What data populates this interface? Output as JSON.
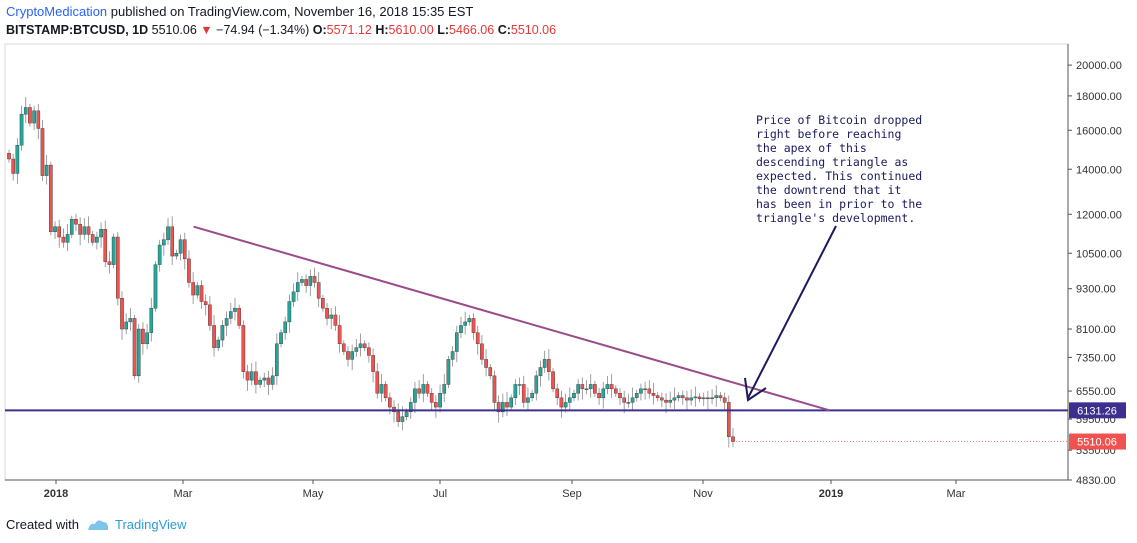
{
  "header": {
    "author": "CryptoMedication",
    "published_text": " published on TradingView.com, November 16, 2018 15:35 EST"
  },
  "ohlc": {
    "symbol": "BITSTAMP:BTCUSD, 1D",
    "last": "5510.06",
    "change": "−74.94 (−1.34%)",
    "o_label": "O:",
    "o_value": "5571.12",
    "h_label": "H:",
    "h_value": "5610.00",
    "l_label": "L:",
    "l_value": "5466.06",
    "c_label": "C:",
    "c_value": "5510.06"
  },
  "annotation": {
    "text": "Price of Bitcoin dropped\nright before reaching\nthe apex of this\ndescending triangle as\nexpected. This continued\nthe downtrend that it\nhas been in prior to the\ntriangle's development."
  },
  "footer": {
    "created_with": "Created with",
    "brand": "TradingView"
  },
  "colors": {
    "up": "#26a69a",
    "down": "#ef5350",
    "wick": "#888888",
    "trend": "#9c4a8a",
    "support": "#3d2f8f",
    "arrow": "#1a1a5e"
  },
  "chart_data": {
    "type": "candlestick",
    "symbol": "BITSTAMP:BTCUSD",
    "timeframe": "1D",
    "x_ticks": [
      "2018",
      "Mar",
      "May",
      "Jul",
      "Sep",
      "Nov",
      "2019",
      "Mar"
    ],
    "y_ticks": [
      20000,
      18000,
      16000,
      14000,
      12000,
      10500,
      9300,
      8100,
      7350,
      6550,
      5950,
      5350,
      4830
    ],
    "y_tick_labels": [
      "20000.00",
      "18000.00",
      "16000.00",
      "14000.00",
      "12000.00",
      "10500.00",
      "9300.00",
      "8100.00",
      "7350.00",
      "6550.00",
      "5950.00",
      "5350.00",
      "4830.00"
    ],
    "ylim": [
      4830,
      21500
    ],
    "scale": "log",
    "support_level": 6131.26,
    "support_label": "6131.26",
    "last_price": 5510.06,
    "last_price_label": "5510.06",
    "descending_trendline": {
      "start_date": "2018-03-05",
      "start_price": 11500,
      "end_date": "2018-12-21",
      "end_price": 6131.26
    },
    "closes": [
      14500,
      13800,
      15200,
      16900,
      17300,
      16400,
      17100,
      16100,
      13700,
      14200,
      11300,
      11500,
      11100,
      10900,
      11200,
      11800,
      11600,
      11200,
      11500,
      11200,
      10900,
      11100,
      11400,
      10200,
      10100,
      11100,
      9000,
      8100,
      8300,
      8400,
      6900,
      8100,
      7700,
      8000,
      8700,
      10100,
      10800,
      11000,
      11500,
      10400,
      10500,
      11000,
      10300,
      9500,
      9100,
      9400,
      8900,
      8800,
      8200,
      7600,
      7800,
      8200,
      8400,
      8600,
      8700,
      8200,
      7000,
      6800,
      7000,
      6700,
      6800,
      6850,
      6700,
      6900,
      7700,
      8000,
      8300,
      8900,
      9200,
      9500,
      9600,
      9400,
      9700,
      9500,
      9000,
      8700,
      8400,
      8500,
      8200,
      7700,
      7500,
      7300,
      7500,
      7600,
      7700,
      7600,
      7400,
      7000,
      6500,
      6700,
      6400,
      6200,
      6100,
      5900,
      6000,
      6100,
      6300,
      6600,
      6500,
      6700,
      6500,
      6300,
      6200,
      6500,
      6700,
      7300,
      7500,
      8000,
      8200,
      8300,
      8400,
      8000,
      7700,
      7300,
      7100,
      6900,
      6300,
      6100,
      6300,
      6200,
      6400,
      6700,
      6700,
      6300,
      6400,
      6500,
      6900,
      7100,
      7300,
      7000,
      6600,
      6400,
      6200,
      6300,
      6400,
      6500,
      6700,
      6600,
      6600,
      6700,
      6500,
      6400,
      6600,
      6700,
      6600,
      6500,
      6400,
      6300,
      6300,
      6400,
      6500,
      6600,
      6600,
      6500,
      6450,
      6400,
      6350,
      6300,
      6350,
      6400,
      6450,
      6400,
      6350,
      6400,
      6420,
      6380,
      6400,
      6380,
      6400,
      6450,
      6400,
      6300,
      5600,
      5510.06
    ]
  }
}
